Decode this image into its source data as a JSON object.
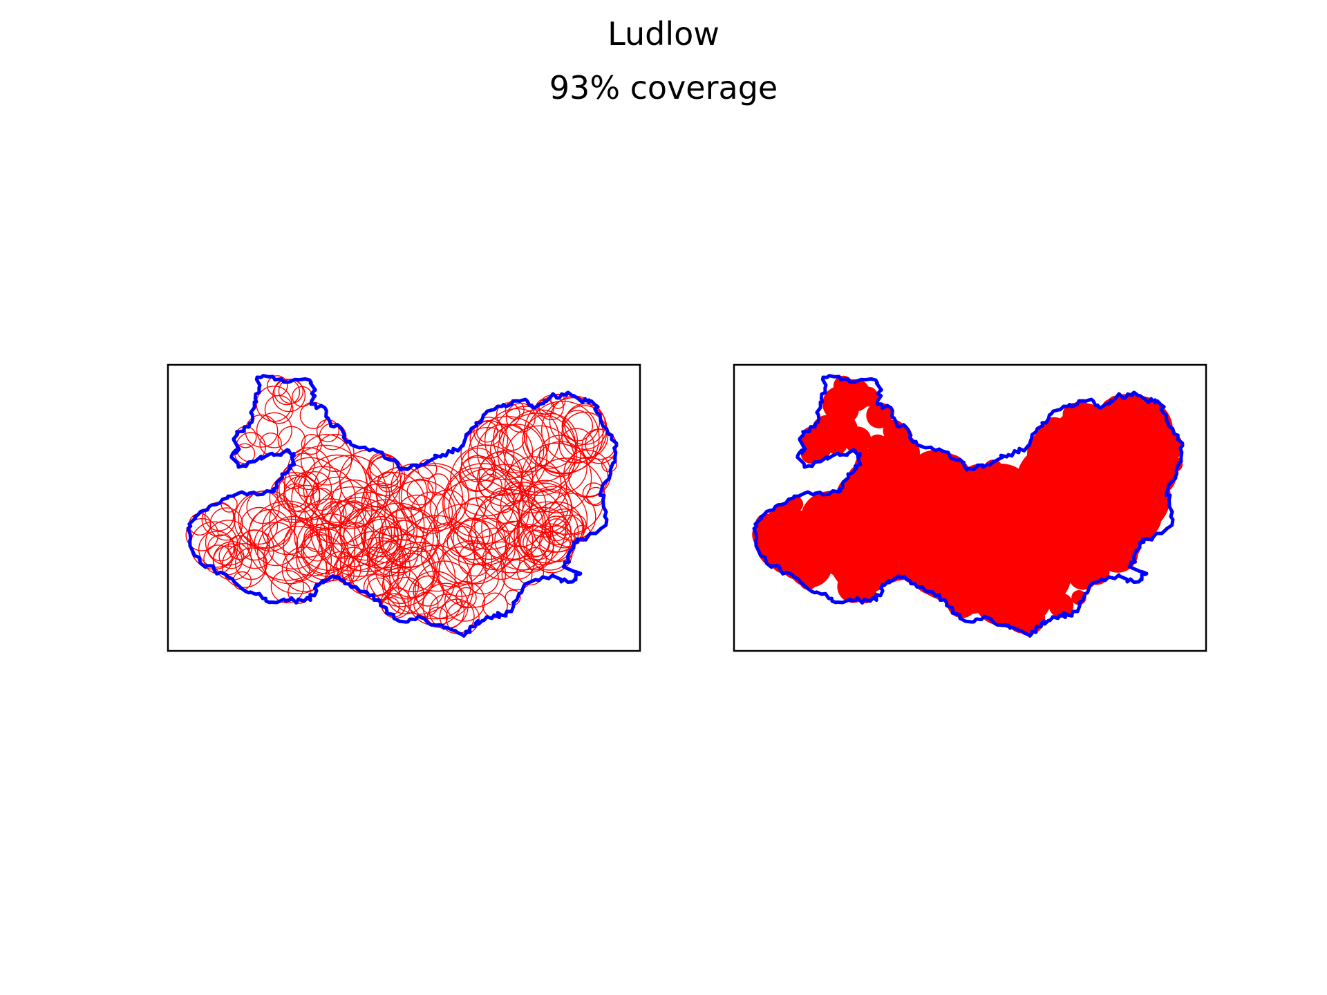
{
  "title": "Ludlow",
  "subtitle": "93% coverage",
  "colors": {
    "boundary": "#0000ff",
    "circles": "#ff0000",
    "fill": "#ff0000",
    "frame": "#000000"
  },
  "panels": [
    {
      "name": "circle-packing",
      "style": "circle-outlines"
    },
    {
      "name": "union-fill",
      "style": "filled-union"
    }
  ]
}
